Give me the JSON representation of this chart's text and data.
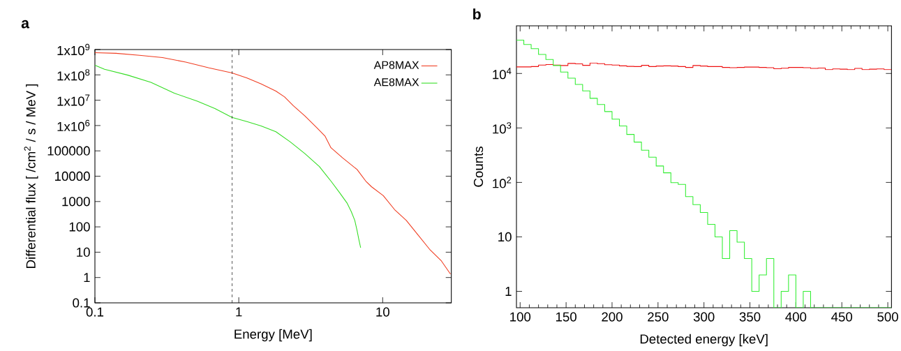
{
  "chart_data": [
    {
      "type": "line",
      "title": "a",
      "xlabel": "Energy [MeV]",
      "ylabel": "Differential flux [ /cm$^{2}$ / s / MeV ]",
      "log": "xy",
      "xlim": [
        0.1,
        30
      ],
      "ylim": [
        0.1,
        1000000000
      ],
      "xticks": [
        0.1,
        1,
        10
      ],
      "yticks": [
        0.1,
        1,
        10,
        100,
        1000,
        10000,
        100000,
        {
          "value": 1000000,
          "label": "1x10$^{6}$"
        },
        {
          "value": 10000000,
          "label": "1x10$^{7}$"
        },
        {
          "value": 100000000,
          "label": "1x10$^{8}$"
        },
        {
          "value": 1000000000,
          "label": "1x10$^{9}$"
        }
      ],
      "legend": "top right",
      "grid": false,
      "ref_lines": [
        {
          "axis": "x",
          "value": 0.9,
          "color": "#000000",
          "line_style": "dashed"
        }
      ],
      "series": [
        {
          "name": "AP8MAX",
          "color": "#f03c20",
          "x": [
            0.1,
            0.14,
            0.204,
            0.295,
            0.428,
            0.621,
            0.897,
            1.14,
            1.43,
            1.81,
            2.08,
            2.39,
            2.88,
            3.47,
            3.98,
            4.37,
            5.26,
            6.64,
            7.63,
            8.38,
            10.1,
            12.2,
            14.6,
            17.6,
            21.2,
            25.6,
            29.6
          ],
          "values": [
            750000000,
            710000000,
            590000000,
            480000000,
            320000000,
            190000000,
            120000000,
            75000000,
            44000000,
            23000000,
            13500000,
            6100000,
            2400000,
            840000,
            380000,
            133000,
            53000,
            18400,
            6400,
            3800,
            1700,
            455,
            180,
            48,
            13,
            4.5,
            1.37
          ]
        },
        {
          "name": "AE8MAX",
          "color": "#33dd22",
          "x": [
            0.1,
            0.1166,
            0.169,
            0.245,
            0.356,
            0.515,
            0.682,
            0.897,
            1.14,
            1.43,
            1.81,
            2.28,
            2.88,
            3.63,
            4.37,
            5.03,
            5.65,
            6.05,
            6.4,
            6.64,
            6.83,
            7.03
          ],
          "values": [
            240000000,
            166000000,
            98000000,
            51000000,
            19000000,
            9100000,
            4700000,
            2100000,
            1430000,
            960000,
            570000,
            225000,
            78000,
            24000,
            6400,
            2200,
            880,
            400,
            180,
            72,
            32,
            15
          ]
        }
      ]
    },
    {
      "type": "histogram",
      "title": "b",
      "xlabel": "Detected energy [keV]",
      "ylabel": "Counts",
      "log": "y",
      "xlim": [
        96,
        504
      ],
      "ylim": [
        0.5,
        75000
      ],
      "xticks": [
        100,
        150,
        200,
        250,
        300,
        350,
        400,
        450,
        500
      ],
      "yticks": [
        1,
        10,
        {
          "value": 100,
          "label": "10$^{2}$"
        },
        {
          "value": 1000,
          "label": "10$^{3}$"
        },
        {
          "value": 10000,
          "label": "10$^{4}$"
        }
      ],
      "grid": false,
      "bins": [
        96,
        104,
        112,
        120,
        128,
        136,
        144,
        152,
        160,
        168,
        176,
        184,
        192,
        200,
        208,
        216,
        224,
        232,
        240,
        248,
        256,
        264,
        272,
        280,
        288,
        296,
        304,
        312,
        320,
        328,
        336,
        344,
        352,
        360,
        368,
        376,
        384,
        392,
        400,
        408,
        416,
        424,
        432,
        440,
        448,
        456,
        464,
        472,
        480,
        488,
        496,
        504
      ],
      "series": [
        {
          "color": "#ee1111",
          "values": [
            13200,
            13200,
            13400,
            14300,
            14600,
            14300,
            14000,
            15300,
            15000,
            14100,
            15600,
            15100,
            14500,
            14300,
            13800,
            13500,
            13400,
            14100,
            13400,
            13700,
            13800,
            13700,
            13400,
            12900,
            14000,
            13700,
            13400,
            13400,
            12900,
            12800,
            12900,
            13100,
            13100,
            12900,
            12800,
            12200,
            12500,
            12900,
            12900,
            12800,
            12400,
            12600,
            11800,
            12100,
            12000,
            11800,
            12400,
            11800,
            12000,
            12100,
            11800
          ]
        },
        {
          "color": "#33ee33",
          "values": [
            41000,
            34000,
            28600,
            22400,
            18100,
            14000,
            10600,
            8200,
            6300,
            4800,
            3500,
            2700,
            2000,
            1450,
            1090,
            760,
            550,
            390,
            290,
            200,
            150,
            99,
            92,
            55,
            39,
            28,
            17,
            10,
            4,
            13,
            8,
            4,
            1,
            2,
            4,
            null,
            1,
            2,
            null,
            1,
            null,
            null,
            null,
            null,
            null,
            null,
            null,
            null,
            null,
            null,
            null
          ]
        }
      ]
    }
  ]
}
